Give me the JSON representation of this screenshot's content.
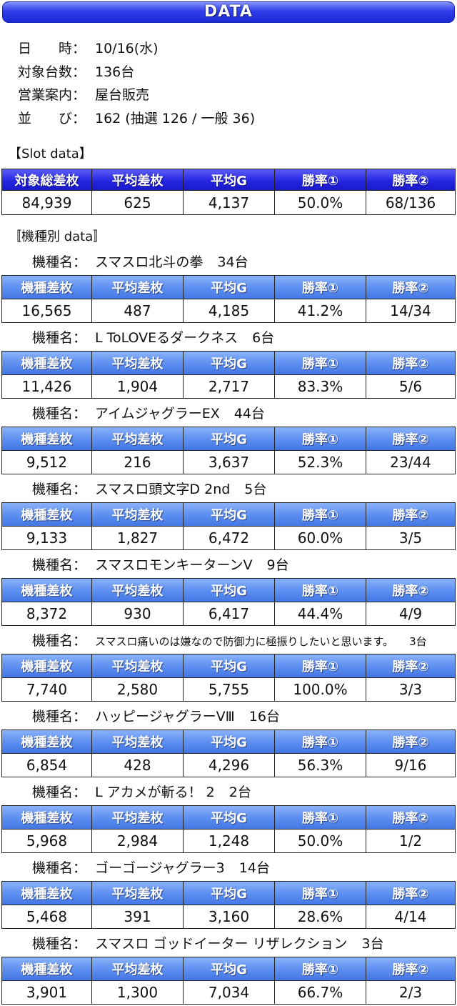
{
  "header": {
    "title": "DATA"
  },
  "info": [
    {
      "label": "日　　時：",
      "value": "10/16(水)"
    },
    {
      "label": "対象台数：",
      "value": "136台"
    },
    {
      "label": "営業案内：",
      "value": "屋台販売"
    },
    {
      "label": "並　　び：",
      "value": "162 (抽選 126 / 一般 36)"
    }
  ],
  "slot_data": {
    "heading": "【Slot data】",
    "columns": [
      "対象総差枚",
      "平均差枚",
      "平均G",
      "勝率①",
      "勝率②"
    ],
    "values": [
      "84,939",
      "625",
      "4,137",
      "50.0%",
      "68/136"
    ]
  },
  "machines": {
    "heading": "〚機種別 data〛",
    "name_label": "機種名：",
    "columns": [
      "機種差枚",
      "平均差枚",
      "平均G",
      "勝率①",
      "勝率②"
    ],
    "list": [
      {
        "name": "スマスロ北斗の拳",
        "units": "34台",
        "values": [
          "16,565",
          "487",
          "4,185",
          "41.2%",
          "14/34"
        ]
      },
      {
        "name": "L ToLOVEるダークネス",
        "units": "6台",
        "values": [
          "11,426",
          "1,904",
          "2,717",
          "83.3%",
          "5/6"
        ]
      },
      {
        "name": "アイムジャグラーEX",
        "units": "44台",
        "values": [
          "9,512",
          "216",
          "3,637",
          "52.3%",
          "23/44"
        ]
      },
      {
        "name": "スマスロ頭文字D 2nd",
        "units": "5台",
        "values": [
          "9,133",
          "1,827",
          "6,472",
          "60.0%",
          "3/5"
        ]
      },
      {
        "name": "スマスロモンキーターンV",
        "units": "9台",
        "values": [
          "8,372",
          "930",
          "6,417",
          "44.4%",
          "4/9"
        ]
      },
      {
        "name": "スマスロ痛いのは嫌なので防御力に極振りしたいと思います。",
        "units": "3台",
        "values": [
          "7,740",
          "2,580",
          "5,755",
          "100.0%",
          "3/3"
        ]
      },
      {
        "name": "ハッピージャグラーVⅢ",
        "units": "16台",
        "values": [
          "6,854",
          "428",
          "4,296",
          "56.3%",
          "9/16"
        ]
      },
      {
        "name": "L アカメが斬る！ 2",
        "units": "2台",
        "values": [
          "5,968",
          "2,984",
          "1,248",
          "50.0%",
          "1/2"
        ]
      },
      {
        "name": "ゴーゴージャグラー3",
        "units": "14台",
        "values": [
          "5,468",
          "391",
          "3,160",
          "28.6%",
          "4/14"
        ]
      },
      {
        "name": "スマスロ ゴッドイーター リザレクション",
        "units": "3台",
        "values": [
          "3,901",
          "1,300",
          "7,034",
          "66.7%",
          "2/3"
        ]
      }
    ]
  },
  "colors": {
    "banner": "#2f3ee8",
    "slot_header": "#2626e2",
    "machine_header": "#5b8ef0",
    "border": "#222222",
    "text": "#111111",
    "header_text": "#ffffff"
  }
}
